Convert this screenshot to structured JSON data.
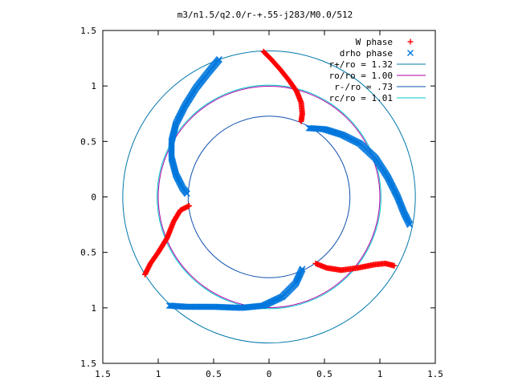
{
  "chart_data": {
    "type": "scatter",
    "title": "m3/n1.5/q2.0/r-+.55-j283/M0.0/512",
    "xlim": [
      -1.5,
      1.5
    ],
    "ylim": [
      -1.5,
      1.5
    ],
    "x_ticks": [
      -1.5,
      -1,
      -0.5,
      0,
      0.5,
      1,
      1.5
    ],
    "x_tick_labels": [
      "1.5",
      "1",
      "0.5",
      "0",
      "0.5",
      "1",
      "1.5"
    ],
    "y_ticks": [
      1.5,
      1,
      0.5,
      0,
      -0.5,
      -1,
      -1.5
    ],
    "y_tick_labels": [
      "1.5",
      "1",
      "0.5",
      "0",
      "0.5",
      "1",
      "1.5"
    ],
    "grid": false,
    "legend_position": "top-right",
    "series": [
      {
        "name": "W phase",
        "kind": "points",
        "marker": "+",
        "color": "#ff0000",
        "segments": [
          [
            [
              -0.05,
              1.31
            ],
            [
              0.02,
              1.24
            ],
            [
              0.1,
              1.15
            ],
            [
              0.18,
              1.05
            ],
            [
              0.25,
              0.95
            ],
            [
              0.29,
              0.85
            ],
            [
              0.3,
              0.75
            ],
            [
              0.29,
              0.68
            ]
          ],
          [
            [
              -0.72,
              -0.08
            ],
            [
              -0.8,
              -0.12
            ],
            [
              -0.86,
              -0.22
            ],
            [
              -0.92,
              -0.37
            ],
            [
              -1.0,
              -0.5
            ],
            [
              -1.07,
              -0.6
            ],
            [
              -1.12,
              -0.7
            ]
          ],
          [
            [
              0.42,
              -0.6
            ],
            [
              0.52,
              -0.64
            ],
            [
              0.65,
              -0.66
            ],
            [
              0.8,
              -0.64
            ],
            [
              0.95,
              -0.61
            ],
            [
              1.05,
              -0.6
            ],
            [
              1.13,
              -0.62
            ]
          ]
        ]
      },
      {
        "name": "drho phase",
        "kind": "points",
        "marker": "x",
        "color": "#0077dd",
        "segments": [
          [
            [
              -0.45,
              1.24
            ],
            [
              -0.55,
              1.12
            ],
            [
              -0.66,
              0.98
            ],
            [
              -0.76,
              0.82
            ],
            [
              -0.84,
              0.66
            ],
            [
              -0.88,
              0.5
            ],
            [
              -0.88,
              0.35
            ],
            [
              -0.84,
              0.2
            ],
            [
              -0.78,
              0.08
            ],
            [
              -0.74,
              0.03
            ]
          ],
          [
            [
              0.36,
              0.62
            ],
            [
              0.5,
              0.61
            ],
            [
              0.66,
              0.56
            ],
            [
              0.82,
              0.48
            ],
            [
              0.96,
              0.35
            ],
            [
              1.07,
              0.18
            ],
            [
              1.16,
              0.0
            ],
            [
              1.22,
              -0.15
            ],
            [
              1.27,
              -0.25
            ]
          ],
          [
            [
              0.3,
              -0.65
            ],
            [
              0.24,
              -0.78
            ],
            [
              0.12,
              -0.9
            ],
            [
              -0.05,
              -0.98
            ],
            [
              -0.25,
              -1.0
            ],
            [
              -0.5,
              -0.99
            ],
            [
              -0.75,
              -0.99
            ],
            [
              -0.9,
              -0.98
            ]
          ]
        ]
      },
      {
        "name": "r+/ro = 1.32",
        "kind": "circle",
        "radius": 1.32,
        "color": "#0077aa"
      },
      {
        "name": "ro/ro = 1.00",
        "kind": "circle",
        "radius": 1.0,
        "color": "#aa00aa"
      },
      {
        "name": "r-/ro = .73",
        "kind": "circle",
        "radius": 0.73,
        "color": "#1050b0"
      },
      {
        "name": "rc/ro = 1.01",
        "kind": "circle",
        "radius": 1.01,
        "color": "#00c8c8"
      }
    ]
  }
}
